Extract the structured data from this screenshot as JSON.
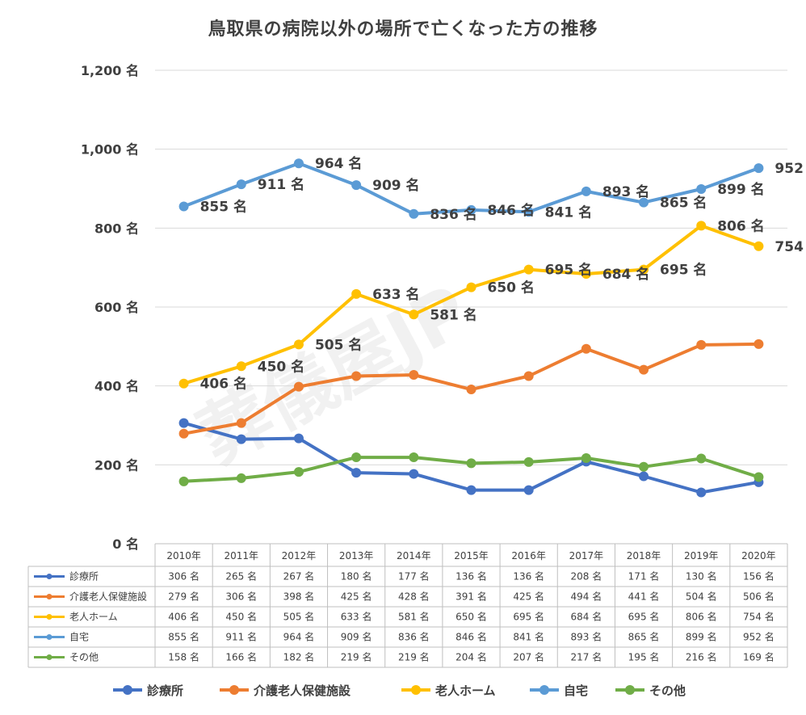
{
  "chart_data": {
    "type": "line",
    "title": "鳥取県の病院以外の場所で亡くなった方の推移",
    "watermark": "葬儀屋JP",
    "unit": "名",
    "categories": [
      "2010年",
      "2011年",
      "2012年",
      "2013年",
      "2014年",
      "2015年",
      "2016年",
      "2017年",
      "2018年",
      "2019年",
      "2020年"
    ],
    "yticks": [
      "1,200 名",
      "1,000 名",
      "800 名",
      "600 名",
      "400 名",
      "200 名",
      "0 名"
    ],
    "ylim": [
      0,
      1200
    ],
    "grid": true,
    "legend_position": "bottom",
    "series": [
      {
        "name": "診療所",
        "color": "#4472c4",
        "values": [
          306,
          265,
          267,
          180,
          177,
          136,
          136,
          208,
          171,
          130,
          156
        ],
        "labeled": false
      },
      {
        "name": "介護老人保健施設",
        "color": "#ed7d31",
        "values": [
          279,
          306,
          398,
          425,
          428,
          391,
          425,
          494,
          441,
          504,
          506
        ],
        "labeled": false
      },
      {
        "name": "老人ホーム",
        "color": "#ffc000",
        "values": [
          406,
          450,
          505,
          633,
          581,
          650,
          695,
          684,
          695,
          806,
          754
        ],
        "labeled": true
      },
      {
        "name": "自宅",
        "color": "#5b9bd5",
        "values": [
          855,
          911,
          964,
          909,
          836,
          846,
          841,
          893,
          865,
          899,
          952
        ],
        "labeled": true
      },
      {
        "name": "その他",
        "color": "#70ad47",
        "values": [
          158,
          166,
          182,
          219,
          219,
          204,
          207,
          217,
          195,
          216,
          169
        ],
        "labeled": false
      }
    ]
  }
}
